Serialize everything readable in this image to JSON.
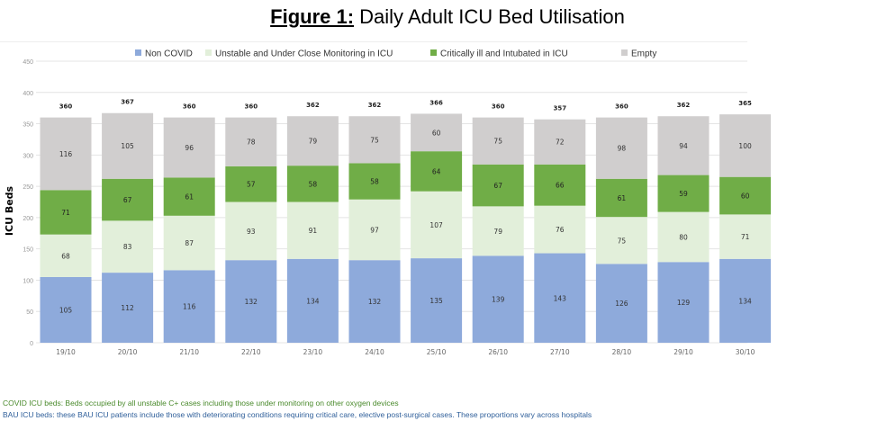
{
  "title": {
    "prefix": "Figure 1:",
    "text": " Daily Adult ICU Bed Utilisation"
  },
  "footnotes": [
    "COVID ICU beds: Beds occupied by all unstable C+ cases including those under monitoring on other oxygen devices",
    "BAU ICU beds: these BAU ICU patients include those with deteriorating conditions requiring critical care, elective post-surgical cases. These proportions vary across hospitals"
  ],
  "chart_data": {
    "type": "bar",
    "stacked": true,
    "title": "Figure 1: Daily Adult ICU Bed Utilisation",
    "xlabel": "",
    "ylabel": "ICU Beds",
    "ylim": [
      0,
      450
    ],
    "yticks": [
      0,
      50,
      100,
      150,
      200,
      250,
      300,
      350,
      400,
      450
    ],
    "grid": true,
    "legend_position": "top",
    "categories": [
      "19/10",
      "20/10",
      "21/10",
      "22/10",
      "23/10",
      "24/10",
      "25/10",
      "26/10",
      "27/10",
      "28/10",
      "29/10",
      "30/10"
    ],
    "series": [
      {
        "name": "Non COVID",
        "color": "#8eaadb",
        "values": [
          105,
          112,
          116,
          132,
          134,
          132,
          135,
          139,
          143,
          126,
          129,
          134
        ]
      },
      {
        "name": "Unstable and Under Close Monitoring in ICU",
        "color": "#e2efda",
        "values": [
          68,
          83,
          87,
          93,
          91,
          97,
          107,
          79,
          76,
          75,
          80,
          71
        ]
      },
      {
        "name": "Critically ill and Intubated in ICU",
        "color": "#70ad47",
        "values": [
          71,
          67,
          61,
          57,
          58,
          58,
          64,
          67,
          66,
          61,
          59,
          60
        ]
      },
      {
        "name": "Empty",
        "color": "#d0cece",
        "values": [
          116,
          105,
          96,
          78,
          79,
          75,
          60,
          75,
          72,
          98,
          94,
          100
        ]
      }
    ],
    "totals": [
      360,
      367,
      360,
      360,
      362,
      362,
      366,
      360,
      357,
      360,
      362,
      365
    ]
  }
}
